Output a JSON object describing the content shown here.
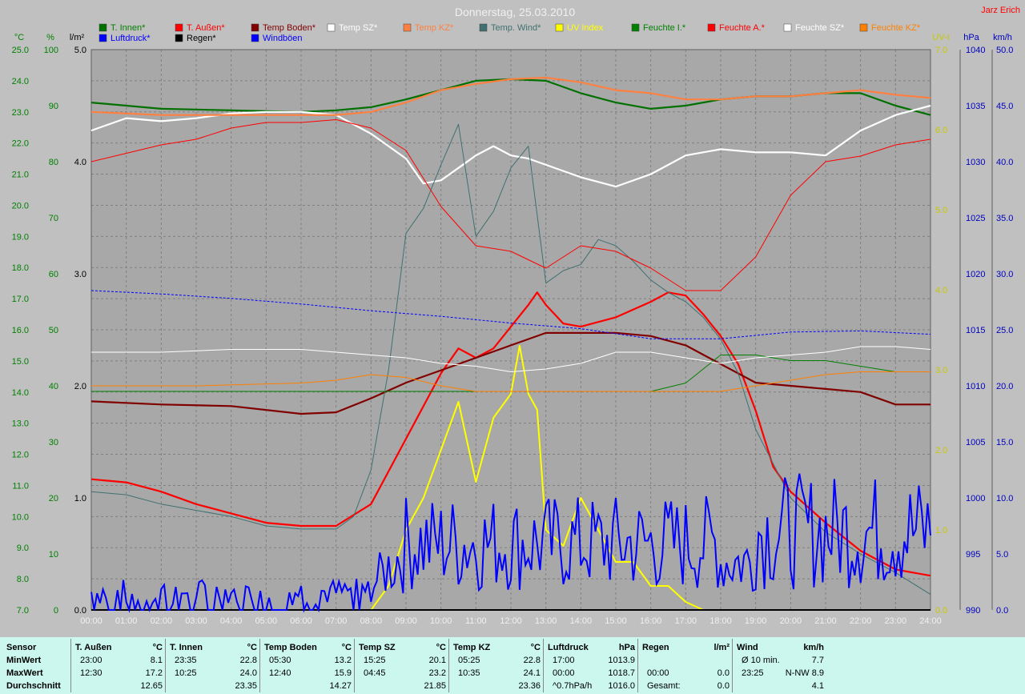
{
  "window": {
    "title": "Donnerstag, 25.03.2010",
    "author": "Jarz Erich"
  },
  "colors": {
    "plot_bg": "#a8a8a8",
    "grid": "#808080"
  },
  "legend": [
    {
      "label": "T. Innen*",
      "color": "#007000"
    },
    {
      "label": "T. Außen*",
      "color": "#ff0000"
    },
    {
      "label": "Temp Boden*",
      "color": "#800000"
    },
    {
      "label": "Temp SZ*",
      "color": "#ffffff"
    },
    {
      "label": "Temp KZ*",
      "color": "#ff8040"
    },
    {
      "label": "Temp. Wind*",
      "color": "#407070"
    },
    {
      "label": "UV Index",
      "color": "#ffff00"
    },
    {
      "label": "Feuchte I.*",
      "color": "#008000"
    },
    {
      "label": "Feuchte A.*",
      "color": "#ff0000"
    },
    {
      "label": "Feuchte SZ*",
      "color": "#ffffff"
    },
    {
      "label": "Feuchte KZ*",
      "color": "#ff8000"
    },
    {
      "label": "Luftdruck*",
      "color": "#0000ff"
    },
    {
      "label": "Regen*",
      "color": "#000000"
    },
    {
      "label": "Windböen",
      "color": "#0000ff"
    }
  ],
  "axes": {
    "temp": {
      "unit": "°C",
      "ticks": [
        "25.0",
        "24.0",
        "23.0",
        "22.0",
        "21.0",
        "20.0",
        "19.0",
        "18.0",
        "17.0",
        "16.0",
        "15.0",
        "14.0",
        "13.0",
        "12.0",
        "11.0",
        "10.0",
        "9.0",
        "8.0",
        "7.0"
      ],
      "color": "#008000"
    },
    "hum": {
      "unit": "%",
      "ticks": [
        "100",
        "90",
        "80",
        "70",
        "60",
        "50",
        "40",
        "30",
        "20",
        "10",
        "0"
      ],
      "color": "#008000"
    },
    "rain": {
      "unit": "l/m²",
      "ticks": [
        "5.0",
        "4.0",
        "3.0",
        "2.0",
        "1.0",
        "0.0"
      ],
      "color": "#000000"
    },
    "uv": {
      "unit": "UV-I",
      "ticks": [
        "7.0",
        "6.0",
        "5.0",
        "4.0",
        "3.0",
        "2.0",
        "1.0",
        "0.0"
      ],
      "color": "#c8c800"
    },
    "press": {
      "unit": "hPa",
      "ticks": [
        "1040",
        "1035",
        "1030",
        "1025",
        "1020",
        "1015",
        "1010",
        "1005",
        "1000",
        "995",
        "990"
      ],
      "color": "#0000c0"
    },
    "wind": {
      "unit": "km/h",
      "ticks": [
        "50.0",
        "45.0",
        "40.0",
        "35.0",
        "30.0",
        "25.0",
        "20.0",
        "15.0",
        "10.0",
        "5.0",
        "0.0"
      ],
      "color": "#0000c0"
    },
    "x": [
      "00:00",
      "01:00",
      "02:00",
      "03:00",
      "04:00",
      "05:00",
      "06:00",
      "07:00",
      "08:00",
      "09:00",
      "10:00",
      "11:00",
      "12:00",
      "13:00",
      "14:00",
      "15:00",
      "16:00",
      "17:00",
      "18:00",
      "19:00",
      "20:00",
      "21:00",
      "22:00",
      "23:00",
      "24:00"
    ]
  },
  "chart_data": {
    "type": "line",
    "title": "Donnerstag, 25.03.2010",
    "x_range": [
      "00:00",
      "24:00"
    ],
    "series": [
      {
        "name": "T. Innen*",
        "axis": "temp",
        "x": [
          0,
          2,
          4,
          6,
          7,
          8,
          9,
          10,
          11,
          12,
          13,
          14,
          15,
          16,
          17,
          18,
          19,
          20,
          21,
          22,
          23,
          24
        ],
        "y": [
          23.3,
          23.1,
          23.05,
          23.0,
          23.05,
          23.15,
          23.4,
          23.7,
          24.0,
          24.05,
          24.0,
          23.6,
          23.3,
          23.1,
          23.2,
          23.4,
          23.5,
          23.5,
          23.6,
          23.6,
          23.2,
          22.9
        ]
      },
      {
        "name": "T. Außen*",
        "axis": "temp",
        "x": [
          0,
          1,
          2,
          3,
          4,
          5,
          6,
          7,
          8,
          9,
          10,
          10.5,
          11,
          11.5,
          12,
          12.5,
          12.75,
          13,
          13.5,
          14,
          15,
          16,
          16.5,
          17,
          17.5,
          18,
          18.5,
          19,
          19.5,
          20,
          21,
          22,
          23,
          24
        ],
        "y": [
          11.2,
          11.1,
          10.8,
          10.4,
          10.1,
          9.8,
          9.7,
          9.7,
          10.4,
          12.5,
          14.6,
          15.4,
          15.1,
          15.4,
          16.1,
          16.8,
          17.2,
          16.8,
          16.2,
          16.1,
          16.4,
          16.9,
          17.2,
          17.1,
          16.5,
          15.8,
          14.9,
          13.4,
          11.6,
          10.8,
          9.8,
          8.9,
          8.3,
          8.1
        ]
      },
      {
        "name": "Temp Boden*",
        "axis": "temp",
        "x": [
          0,
          2,
          4,
          6,
          7,
          8,
          9,
          10,
          11,
          12,
          13,
          14,
          15,
          16,
          17,
          18,
          19,
          20,
          21,
          22,
          23,
          24
        ],
        "y": [
          13.7,
          13.6,
          13.55,
          13.3,
          13.35,
          13.8,
          14.3,
          14.7,
          15.1,
          15.5,
          15.9,
          15.9,
          15.9,
          15.8,
          15.5,
          14.9,
          14.3,
          14.2,
          14.1,
          14.0,
          13.6,
          13.6
        ]
      },
      {
        "name": "Temp SZ*",
        "axis": "temp",
        "x": [
          0,
          1,
          2,
          3,
          4,
          5,
          6,
          7,
          8,
          9,
          9.5,
          10,
          10.5,
          11,
          11.5,
          12,
          12.5,
          13,
          14,
          15,
          16,
          17,
          18,
          19,
          20,
          21,
          22,
          23,
          24
        ],
        "y": [
          22.4,
          22.8,
          22.7,
          22.8,
          22.95,
          23.0,
          23.0,
          22.9,
          22.3,
          21.5,
          20.7,
          20.8,
          21.2,
          21.6,
          21.9,
          21.6,
          21.5,
          21.3,
          20.9,
          20.6,
          21.0,
          21.6,
          21.8,
          21.7,
          21.7,
          21.6,
          22.4,
          22.9,
          23.2
        ]
      },
      {
        "name": "Temp KZ*",
        "axis": "temp",
        "x": [
          0,
          2,
          4,
          6,
          7,
          8,
          9,
          10,
          11,
          12,
          13,
          14,
          15,
          16,
          17,
          18,
          19,
          20,
          21,
          22,
          23,
          24
        ],
        "y": [
          23.0,
          22.9,
          22.9,
          22.9,
          22.9,
          23.0,
          23.3,
          23.7,
          23.9,
          24.05,
          24.1,
          23.95,
          23.7,
          23.6,
          23.4,
          23.4,
          23.5,
          23.5,
          23.6,
          23.7,
          23.55,
          23.45
        ]
      },
      {
        "name": "Temp. Wind*",
        "axis": "temp",
        "x": [
          0,
          1,
          2,
          3,
          4,
          5,
          6,
          7,
          7.5,
          8,
          8.5,
          9,
          9.5,
          10,
          10.5,
          11,
          11.5,
          12,
          12.5,
          13,
          13.5,
          14,
          14.5,
          15,
          15.5,
          16,
          16.5,
          17,
          17.5,
          18,
          18.5,
          19,
          20,
          21,
          22,
          23,
          24
        ],
        "y": [
          10.8,
          10.7,
          10.4,
          10.2,
          10.0,
          9.7,
          9.6,
          9.6,
          10.0,
          11.5,
          14.7,
          19.1,
          19.9,
          21.3,
          22.6,
          19.0,
          19.8,
          21.2,
          21.9,
          17.5,
          17.9,
          18.1,
          18.9,
          18.7,
          18.2,
          17.6,
          17.2,
          16.9,
          16.4,
          15.7,
          14.6,
          12.8,
          10.6,
          9.5,
          8.8,
          8.2,
          7.5
        ]
      },
      {
        "name": "UV Index",
        "axis": "uv",
        "x": [
          0,
          8,
          8.5,
          9,
          9.5,
          10,
          10.5,
          11,
          11.5,
          12,
          12.25,
          12.5,
          12.75,
          13,
          13.5,
          14,
          14.5,
          15,
          15.5,
          16,
          16.5,
          17,
          17.5,
          18,
          24
        ],
        "y": [
          0,
          0,
          0.3,
          1.0,
          1.4,
          2.0,
          2.6,
          1.6,
          2.4,
          2.7,
          3.3,
          2.7,
          2.5,
          1.0,
          0.8,
          1.4,
          1.0,
          0.6,
          0.6,
          0.3,
          0.3,
          0.1,
          0,
          0,
          0
        ]
      },
      {
        "name": "Feuchte I.*",
        "axis": "hum",
        "x": [
          0,
          16,
          17,
          18,
          19,
          20,
          21,
          22,
          23,
          24
        ],
        "y": [
          39,
          39,
          40.5,
          45.5,
          45.5,
          44.5,
          44.5,
          43.5,
          42.5,
          42.5
        ]
      },
      {
        "name": "Feuchte A.*",
        "axis": "hum",
        "x": [
          0,
          1,
          2,
          3,
          4,
          5,
          6,
          7,
          8,
          9,
          10,
          11,
          12,
          13,
          14,
          15,
          16,
          17,
          18,
          19,
          20,
          21,
          22,
          23,
          24
        ],
        "y": [
          80,
          81.5,
          83,
          84,
          86,
          87,
          87,
          87.5,
          86,
          82,
          72,
          65,
          64,
          61,
          65,
          64,
          61,
          57,
          57,
          63,
          74,
          80,
          81,
          83,
          84
        ]
      },
      {
        "name": "Feuchte SZ*",
        "axis": "hum",
        "x": [
          0,
          2,
          4,
          6,
          8,
          9,
          10,
          11,
          12,
          13,
          14,
          15,
          16,
          17,
          18,
          19,
          20,
          21,
          22,
          23,
          24
        ],
        "y": [
          46,
          46,
          46.5,
          46.5,
          45.5,
          45,
          44,
          43.5,
          42.5,
          43,
          44,
          46,
          46,
          45,
          44,
          45,
          45.5,
          46,
          47,
          47,
          46.5
        ]
      },
      {
        "name": "Feuchte KZ*",
        "axis": "hum",
        "x": [
          0,
          3,
          6,
          7,
          8,
          9,
          10,
          11,
          12,
          13,
          14,
          15,
          16,
          17,
          18,
          19,
          20,
          21,
          22,
          23,
          24
        ],
        "y": [
          40,
          40,
          40.5,
          41,
          42,
          41.5,
          40,
          39,
          39,
          39,
          39,
          39,
          39,
          39,
          39,
          40,
          41,
          42,
          42.5,
          42.5,
          42.5
        ]
      },
      {
        "name": "Luftdruck*",
        "axis": "press",
        "x": [
          0,
          2,
          4,
          6,
          8,
          10,
          12,
          14,
          16,
          18,
          20,
          22,
          24
        ],
        "y": [
          1018.5,
          1018.2,
          1017.8,
          1017.3,
          1016.7,
          1016.2,
          1015.6,
          1015.1,
          1014.2,
          1014.2,
          1014.8,
          1014.9,
          1014.6
        ]
      },
      {
        "name": "Regen*",
        "axis": "rain",
        "x": [
          0,
          24
        ],
        "y": [
          0,
          0
        ]
      }
    ],
    "gusts": {
      "name": "Windböen",
      "axis": "wind"
    }
  },
  "stats": {
    "row_labels": [
      "Sensor",
      "MinWert",
      "MaxWert",
      "Durchschnitt"
    ],
    "columns": [
      {
        "name": "T. Außen",
        "unit": "°C",
        "min_time": "23:00",
        "min": "8.1",
        "max_time": "12:30",
        "max": "17.2",
        "avg": "12.65"
      },
      {
        "name": "T. Innen",
        "unit": "°C",
        "min_time": "23:35",
        "min": "22.8",
        "max_time": "10:25",
        "max": "24.0",
        "avg": "23.35"
      },
      {
        "name": "Temp Boden",
        "unit": "°C",
        "min_time": "05:30",
        "min": "13.2",
        "max_time": "12:40",
        "max": "15.9",
        "avg": "14.27"
      },
      {
        "name": "Temp SZ",
        "unit": "°C",
        "min_time": "15:25",
        "min": "20.1",
        "max_time": "04:45",
        "max": "23.2",
        "avg": "21.85"
      },
      {
        "name": "Temp KZ",
        "unit": "°C",
        "min_time": "05:25",
        "min": "22.8",
        "max_time": "10:35",
        "max": "24.1",
        "avg": "23.36"
      },
      {
        "name": "Luftdruck",
        "unit": "hPa",
        "min_time": "17:00",
        "min": "1013.9",
        "max_time": "00:00",
        "max": "1018.7",
        "avg_label": "^0.7hPa/h",
        "avg": "1016.0"
      },
      {
        "name": "Regen",
        "unit": "l/m²",
        "min_time": "",
        "min": "",
        "max_time": "00:00",
        "max": "0.0",
        "avg_label": "Gesamt:",
        "avg": "0.0"
      },
      {
        "name": "Wind",
        "unit": "km/h",
        "min_time": "Ø 10 min.",
        "min": "7.7",
        "max_time": "23:25",
        "max": "N-NW 8.9",
        "avg": "4.1"
      }
    ]
  }
}
